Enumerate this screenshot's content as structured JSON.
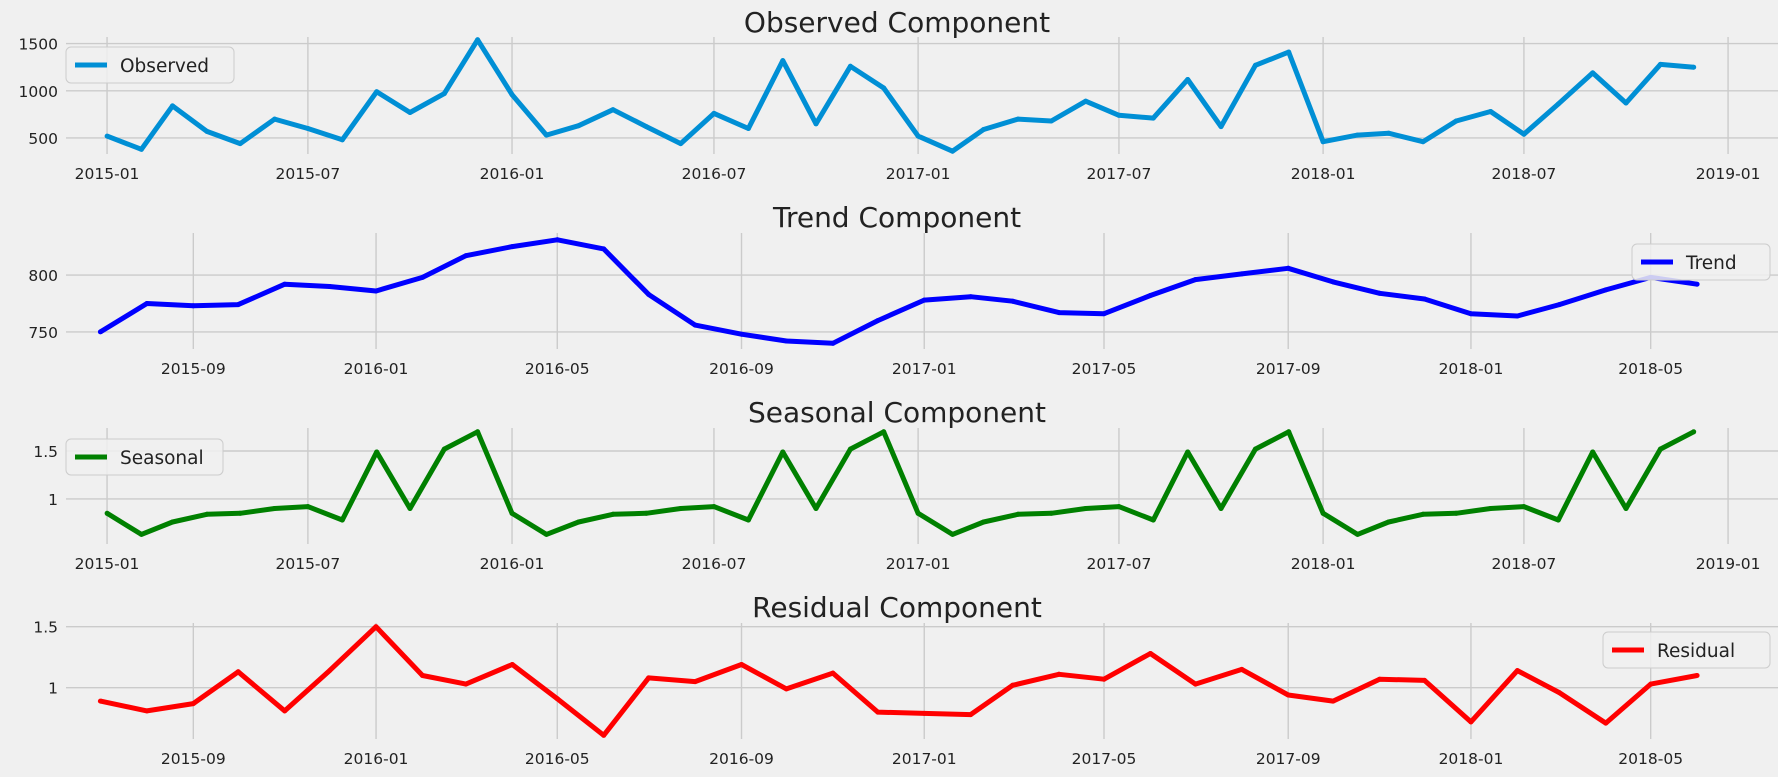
{
  "chart_data": [
    {
      "type": "line",
      "title": "Observed Component",
      "series": [
        {
          "name": "Observed",
          "color": "#008fd5"
        }
      ],
      "legend_position": "upper left",
      "grid": true,
      "x_ticks": [
        "2015-01",
        "2015-07",
        "2016-01",
        "2016-07",
        "2017-01",
        "2017-07",
        "2018-01",
        "2018-07",
        "2019-01"
      ],
      "y_ticks": [
        500,
        1000,
        1500
      ],
      "ylim": [
        330,
        1570
      ],
      "xlim": [
        "2014-11-25",
        "2019-02-15"
      ],
      "x": [
        "2015-01",
        "2015-02",
        "2015-03",
        "2015-04",
        "2015-05",
        "2015-06",
        "2015-07",
        "2015-08",
        "2015-09",
        "2015-10",
        "2015-11",
        "2015-12",
        "2016-01",
        "2016-02",
        "2016-03",
        "2016-04",
        "2016-05",
        "2016-06",
        "2016-07",
        "2016-08",
        "2016-09",
        "2016-10",
        "2016-11",
        "2016-12",
        "2017-01",
        "2017-02",
        "2017-03",
        "2017-04",
        "2017-05",
        "2017-06",
        "2017-07",
        "2017-08",
        "2017-09",
        "2017-10",
        "2017-11",
        "2017-12",
        "2018-01",
        "2018-02",
        "2018-03",
        "2018-04",
        "2018-05",
        "2018-06",
        "2018-07",
        "2018-08",
        "2018-09",
        "2018-10",
        "2018-11",
        "2018-12"
      ],
      "y": [
        520,
        380,
        840,
        570,
        440,
        700,
        600,
        480,
        990,
        770,
        970,
        1540,
        960,
        530,
        630,
        800,
        620,
        440,
        760,
        600,
        1320,
        650,
        1260,
        1030,
        520,
        360,
        590,
        700,
        680,
        890,
        740,
        710,
        1120,
        620,
        1270,
        1410,
        460,
        530,
        550,
        460,
        680,
        780,
        540,
        860,
        1190,
        870,
        1280,
        1250
      ]
    },
    {
      "type": "line",
      "title": "Trend Component",
      "series": [
        {
          "name": "Trend",
          "color": "#0000ff"
        }
      ],
      "legend_position": "upper right",
      "grid": true,
      "x_ticks": [
        "2015-09",
        "2016-01",
        "2016-05",
        "2016-09",
        "2017-01",
        "2017-05",
        "2017-09",
        "2018-01",
        "2018-05"
      ],
      "y_ticks": [
        750,
        800
      ],
      "ylim": [
        735,
        837
      ],
      "xlim": [
        "2015-06-08",
        "2018-07-25"
      ],
      "x": [
        "2015-07",
        "2015-08",
        "2015-09",
        "2015-10",
        "2015-11",
        "2015-12",
        "2016-01",
        "2016-02",
        "2016-03",
        "2016-04",
        "2016-05",
        "2016-06",
        "2016-07",
        "2016-08",
        "2016-09",
        "2016-10",
        "2016-11",
        "2016-12",
        "2017-01",
        "2017-02",
        "2017-03",
        "2017-04",
        "2017-05",
        "2017-06",
        "2017-07",
        "2017-08",
        "2017-09",
        "2017-10",
        "2017-11",
        "2017-12",
        "2018-01",
        "2018-02",
        "2018-03",
        "2018-04",
        "2018-05",
        "2018-06"
      ],
      "y": [
        750,
        775,
        773,
        774,
        792,
        790,
        786,
        798,
        817,
        825,
        831,
        823,
        783,
        756,
        748,
        742,
        740,
        760,
        778,
        781,
        777,
        767,
        766,
        782,
        796,
        801,
        806,
        794,
        784,
        779,
        766,
        764,
        774,
        787,
        798,
        792
      ]
    },
    {
      "type": "line",
      "title": "Seasonal Component",
      "series": [
        {
          "name": "Seasonal",
          "color": "#008000"
        }
      ],
      "legend_position": "upper left",
      "grid": true,
      "x_ticks": [
        "2015-01",
        "2015-07",
        "2016-01",
        "2016-07",
        "2017-01",
        "2017-07",
        "2018-01",
        "2018-07",
        "2019-01"
      ],
      "y_ticks": [
        1.0,
        1.5
      ],
      "ylim": [
        0.53,
        1.74
      ],
      "xlim": [
        "2014-11-25",
        "2019-02-15"
      ],
      "x": [
        "2015-01",
        "2015-02",
        "2015-03",
        "2015-04",
        "2015-05",
        "2015-06",
        "2015-07",
        "2015-08",
        "2015-09",
        "2015-10",
        "2015-11",
        "2015-12",
        "2016-01",
        "2016-02",
        "2016-03",
        "2016-04",
        "2016-05",
        "2016-06",
        "2016-07",
        "2016-08",
        "2016-09",
        "2016-10",
        "2016-11",
        "2016-12",
        "2017-01",
        "2017-02",
        "2017-03",
        "2017-04",
        "2017-05",
        "2017-06",
        "2017-07",
        "2017-08",
        "2017-09",
        "2017-10",
        "2017-11",
        "2017-12",
        "2018-01",
        "2018-02",
        "2018-03",
        "2018-04",
        "2018-05",
        "2018-06",
        "2018-07",
        "2018-08",
        "2018-09",
        "2018-10",
        "2018-11",
        "2018-12"
      ],
      "y": [
        0.85,
        0.63,
        0.76,
        0.84,
        0.85,
        0.9,
        0.92,
        0.78,
        1.49,
        0.9,
        1.52,
        1.7,
        0.85,
        0.63,
        0.76,
        0.84,
        0.85,
        0.9,
        0.92,
        0.78,
        1.49,
        0.9,
        1.52,
        1.7,
        0.85,
        0.63,
        0.76,
        0.84,
        0.85,
        0.9,
        0.92,
        0.78,
        1.49,
        0.9,
        1.52,
        1.7,
        0.85,
        0.63,
        0.76,
        0.84,
        0.85,
        0.9,
        0.92,
        0.78,
        1.49,
        0.9,
        1.52,
        1.7
      ]
    },
    {
      "type": "line",
      "title": "Residual Component",
      "series": [
        {
          "name": "Residual",
          "color": "#ff0000"
        }
      ],
      "legend_position": "upper right",
      "grid": true,
      "x_ticks": [
        "2015-09",
        "2016-01",
        "2016-05",
        "2016-09",
        "2017-01",
        "2017-05",
        "2017-09",
        "2018-01",
        "2018-05"
      ],
      "y_ticks": [
        1.0,
        1.5
      ],
      "ylim": [
        0.58,
        1.53
      ],
      "xlim": [
        "2015-06-08",
        "2018-07-25"
      ],
      "x": [
        "2015-07",
        "2015-08",
        "2015-09",
        "2015-10",
        "2015-11",
        "2015-12",
        "2016-01",
        "2016-02",
        "2016-03",
        "2016-04",
        "2016-05",
        "2016-06",
        "2016-07",
        "2016-08",
        "2016-09",
        "2016-10",
        "2016-11",
        "2016-12",
        "2017-01",
        "2017-02",
        "2017-03",
        "2017-04",
        "2017-05",
        "2017-06",
        "2017-07",
        "2017-08",
        "2017-09",
        "2017-10",
        "2017-11",
        "2017-12",
        "2018-01",
        "2018-02",
        "2018-03",
        "2018-04",
        "2018-05",
        "2018-06"
      ],
      "y": [
        0.89,
        0.81,
        0.87,
        1.13,
        0.81,
        1.14,
        1.5,
        1.1,
        1.03,
        1.19,
        0.91,
        0.61,
        1.08,
        1.05,
        1.19,
        0.99,
        1.12,
        0.8,
        0.79,
        0.78,
        1.02,
        1.11,
        1.07,
        1.28,
        1.03,
        1.15,
        0.94,
        0.89,
        1.07,
        1.06,
        0.72,
        1.14,
        0.96,
        0.71,
        1.03,
        1.1
      ]
    }
  ]
}
